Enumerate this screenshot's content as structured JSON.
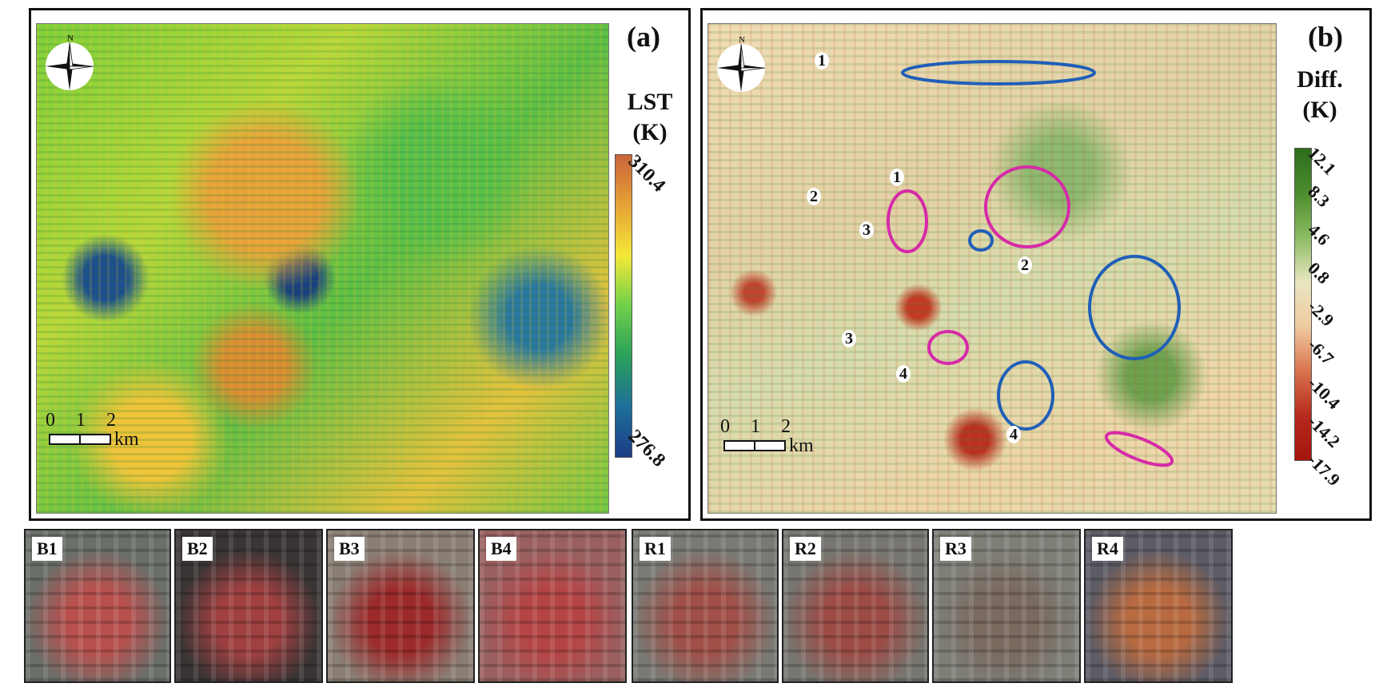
{
  "panel_a": {
    "label": "(a)",
    "legend_title_line1": "LST",
    "legend_title_line2": "(K)",
    "ticks": [
      "310.4",
      "276.8"
    ],
    "colorbar_colors": [
      "#c9643a",
      "#e6a236",
      "#f4e838",
      "#6fd04a",
      "#2aa05a",
      "#1e6f9a",
      "#1c3c85"
    ],
    "scale_numbers": [
      "0",
      "1",
      "2"
    ],
    "scale_unit": "km",
    "north_label": "N"
  },
  "panel_b": {
    "label": "(b)",
    "legend_title_line1": "Diff.",
    "legend_title_line2": "(K)",
    "ticks": [
      "12.1",
      "8.3",
      "4.6",
      "0.8",
      "-2.9",
      "-6.7",
      "-10.4",
      "-14.2",
      "-17.9"
    ],
    "colorbar_colors": [
      "#2e6d1d",
      "#4c8c2d",
      "#8cbc62",
      "#e8e6c0",
      "#f0caa0",
      "#d8734e",
      "#b52a1c",
      "#a5160e"
    ],
    "scale_numbers": [
      "0",
      "1",
      "2"
    ],
    "scale_unit": "km",
    "north_label": "N",
    "blue_markers": [
      "1",
      "2",
      "3",
      "4"
    ],
    "magenta_markers": [
      "1",
      "2",
      "3",
      "4"
    ],
    "blue_color": "#1f5fb8",
    "magenta_color": "#d62aa8"
  },
  "thumbnails": [
    {
      "label": "B1",
      "base": "#6a6f6a",
      "accent": "#b8514e"
    },
    {
      "label": "B2",
      "base": "#3a3535",
      "accent": "#a04040"
    },
    {
      "label": "B3",
      "base": "#8a7f75",
      "accent": "#9c2a2a"
    },
    {
      "label": "B4",
      "base": "#9a6060",
      "accent": "#b54545"
    },
    {
      "label": "R1",
      "base": "#7a7a74",
      "accent": "#a05048"
    },
    {
      "label": "R2",
      "base": "#787670",
      "accent": "#9c4b45"
    },
    {
      "label": "R3",
      "base": "#7e8078",
      "accent": "#7a6a60"
    },
    {
      "label": "R4",
      "base": "#5c5c66",
      "accent": "#b86a40"
    }
  ]
}
